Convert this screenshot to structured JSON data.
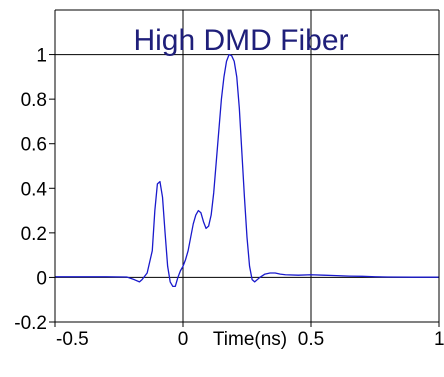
{
  "chart_data": {
    "type": "line",
    "title": "High DMD Fiber",
    "xlabel": "Time(ns)",
    "ylabel": "",
    "xlim": [
      -0.5,
      1.0
    ],
    "ylim": [
      -0.2,
      1.2
    ],
    "x_ticks": [
      -0.5,
      0,
      0.5,
      1
    ],
    "x_tick_labels": [
      "-0.5",
      "0",
      "0.5",
      "1"
    ],
    "y_ticks": [
      -0.2,
      0,
      0.2,
      0.4,
      0.6,
      0.8,
      1
    ],
    "y_tick_labels": [
      "-0.2",
      "0",
      "0.2",
      "0.4",
      "0.6",
      "0.8",
      "1"
    ],
    "grid": {
      "x_major": [
        0,
        0.5
      ],
      "y_major": [
        0,
        1
      ]
    },
    "legend": "none",
    "colors": {
      "line": "#1a1acc",
      "title": "#1f1f7a",
      "grid": "#000000"
    },
    "series": [
      {
        "x": [
          -0.5,
          -0.3,
          -0.22,
          -0.19,
          -0.17,
          -0.16,
          -0.14,
          -0.12,
          -0.11,
          -0.1,
          -0.09,
          -0.08,
          -0.07,
          -0.06,
          -0.05,
          -0.04,
          -0.03,
          -0.02,
          -0.01,
          0.0,
          0.01,
          0.02,
          0.03,
          0.04,
          0.05,
          0.06,
          0.07,
          0.08,
          0.09,
          0.1,
          0.11,
          0.12,
          0.13,
          0.14,
          0.15,
          0.16,
          0.17,
          0.18,
          0.19,
          0.2,
          0.21,
          0.22,
          0.23,
          0.24,
          0.25,
          0.26,
          0.27,
          0.28,
          0.3,
          0.32,
          0.34,
          0.36,
          0.38,
          0.4,
          0.45,
          0.5,
          0.55,
          0.6,
          0.65,
          0.7,
          0.75,
          0.8,
          0.9,
          1.0
        ],
        "y": [
          0.003,
          0.003,
          0.002,
          -0.01,
          -0.02,
          -0.01,
          0.02,
          0.12,
          0.3,
          0.42,
          0.43,
          0.36,
          0.2,
          0.05,
          -0.02,
          -0.04,
          -0.04,
          0.0,
          0.03,
          0.05,
          0.08,
          0.12,
          0.18,
          0.24,
          0.28,
          0.3,
          0.29,
          0.25,
          0.22,
          0.23,
          0.28,
          0.38,
          0.52,
          0.66,
          0.8,
          0.9,
          0.97,
          1.0,
          0.995,
          0.97,
          0.9,
          0.76,
          0.56,
          0.36,
          0.18,
          0.05,
          -0.01,
          -0.02,
          0.0,
          0.015,
          0.02,
          0.02,
          0.015,
          0.012,
          0.01,
          0.012,
          0.01,
          0.008,
          0.006,
          0.005,
          0.003,
          0.002,
          0.001,
          0.001
        ]
      }
    ]
  }
}
